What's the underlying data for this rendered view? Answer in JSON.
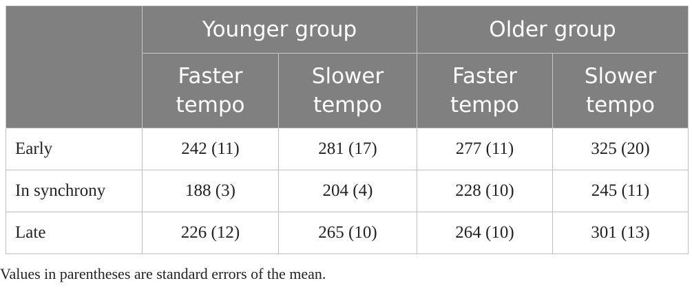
{
  "table": {
    "groups": [
      "Younger group",
      "Older group"
    ],
    "conditions": [
      {
        "line1": "Faster",
        "line2": "tempo"
      },
      {
        "line1": "Slower",
        "line2": "tempo"
      },
      {
        "line1": "Faster",
        "line2": "tempo"
      },
      {
        "line1": "Slower",
        "line2": "tempo"
      }
    ],
    "rows": [
      {
        "label": "Early",
        "values": [
          "242 (11)",
          "281 (17)",
          "277 (11)",
          "325 (20)"
        ]
      },
      {
        "label": "In synchrony",
        "values": [
          "188 (3)",
          "204 (4)",
          "228 (10)",
          "245 (11)"
        ]
      },
      {
        "label": "Late",
        "values": [
          "226 (12)",
          "265 (10)",
          "264 (10)",
          "301 (13)"
        ]
      }
    ]
  },
  "footnote": "Values in parentheses are standard errors of the mean.",
  "colors": {
    "header_background": "#808080",
    "header_text": "#ffffff",
    "body_text": "#222222"
  }
}
